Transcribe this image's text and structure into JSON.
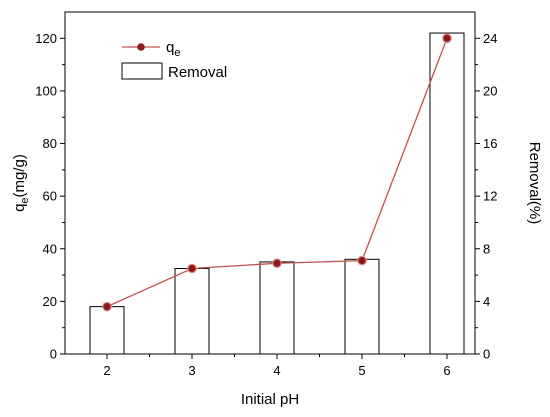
{
  "chart_data": {
    "type": "bar+line",
    "x_label": "Initial pH",
    "categories": [
      2,
      3,
      4,
      5,
      6
    ],
    "left_axis": {
      "label_main": "q",
      "label_sub": "e",
      "label_unit": "(mg/g)",
      "ylim": [
        0,
        130
      ],
      "ticks": [
        0,
        20,
        40,
        60,
        80,
        100,
        120
      ]
    },
    "right_axis": {
      "label": "Removal(%)",
      "ylim": [
        0,
        26
      ],
      "ticks": [
        0,
        4,
        8,
        12,
        16,
        20,
        24
      ]
    },
    "series": [
      {
        "name": "q",
        "name_sub": "e",
        "kind": "line",
        "axis": "left",
        "values": [
          18,
          32.5,
          34.5,
          35.5,
          120
        ],
        "color": "#c0504d",
        "marker_color": "#8b1a1a"
      },
      {
        "name": "Removal",
        "kind": "bar",
        "axis": "right",
        "values": [
          3.6,
          6.5,
          7.0,
          7.2,
          24.4
        ],
        "color": "#000000",
        "fill": "#ffffff"
      }
    ],
    "legend_position": "top-left",
    "grid": false
  }
}
